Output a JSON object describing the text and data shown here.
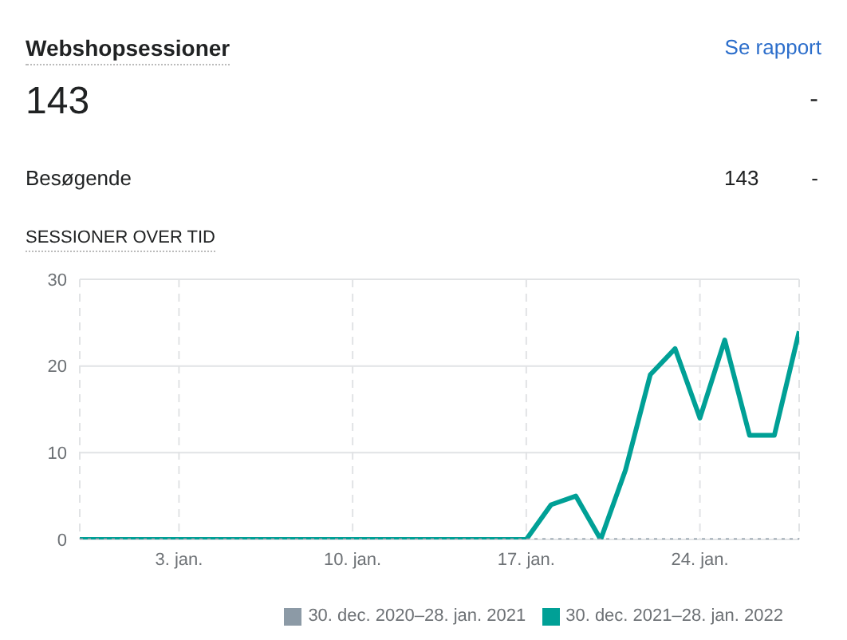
{
  "chart_data": {
    "type": "line",
    "title": "Webshopsessioner",
    "subtitle": "SESSIONER OVER TID",
    "annotations": [
      "Se rapport",
      "143",
      "-",
      "Besøgende",
      "143",
      "-"
    ],
    "x": [
      "2021-12-30",
      "2021-12-31",
      "2022-01-01",
      "2022-01-02",
      "2022-01-03",
      "2022-01-04",
      "2022-01-05",
      "2022-01-06",
      "2022-01-07",
      "2022-01-08",
      "2022-01-09",
      "2022-01-10",
      "2022-01-11",
      "2022-01-12",
      "2022-01-13",
      "2022-01-14",
      "2022-01-15",
      "2022-01-16",
      "2022-01-17",
      "2022-01-18",
      "2022-01-19",
      "2022-01-20",
      "2022-01-21",
      "2022-01-22",
      "2022-01-23",
      "2022-01-24",
      "2022-01-25",
      "2022-01-26",
      "2022-01-27",
      "2022-01-28"
    ],
    "series": [
      {
        "name": "30. dec. 2020–28. jan. 2021",
        "color": "#8c9aa6",
        "line_style": "dotted",
        "values": [
          0,
          0,
          0,
          0,
          0,
          0,
          0,
          0,
          0,
          0,
          0,
          0,
          0,
          0,
          0,
          0,
          0,
          0,
          0,
          0,
          0,
          0,
          0,
          0,
          0,
          0,
          0,
          0,
          0,
          0
        ]
      },
      {
        "name": "30. dec. 2021–28. jan. 2022",
        "color": "#00a096",
        "line_style": "solid",
        "values": [
          0,
          0,
          0,
          0,
          0,
          0,
          0,
          0,
          0,
          0,
          0,
          0,
          0,
          0,
          0,
          0,
          0,
          0,
          0,
          4,
          5,
          0,
          8,
          19,
          22,
          14,
          23,
          12,
          12,
          24
        ]
      }
    ],
    "xlim": [
      "2021-12-30",
      "2022-01-28"
    ],
    "xticks": [
      {
        "value": "2022-01-03",
        "label": "3. jan."
      },
      {
        "value": "2022-01-10",
        "label": "10. jan."
      },
      {
        "value": "2022-01-17",
        "label": "17. jan."
      },
      {
        "value": "2022-01-24",
        "label": "24. jan."
      }
    ],
    "ylim": [
      0,
      30
    ],
    "yticks": [
      0,
      10,
      20,
      30
    ],
    "grid": true,
    "legend": "bottom right"
  }
}
